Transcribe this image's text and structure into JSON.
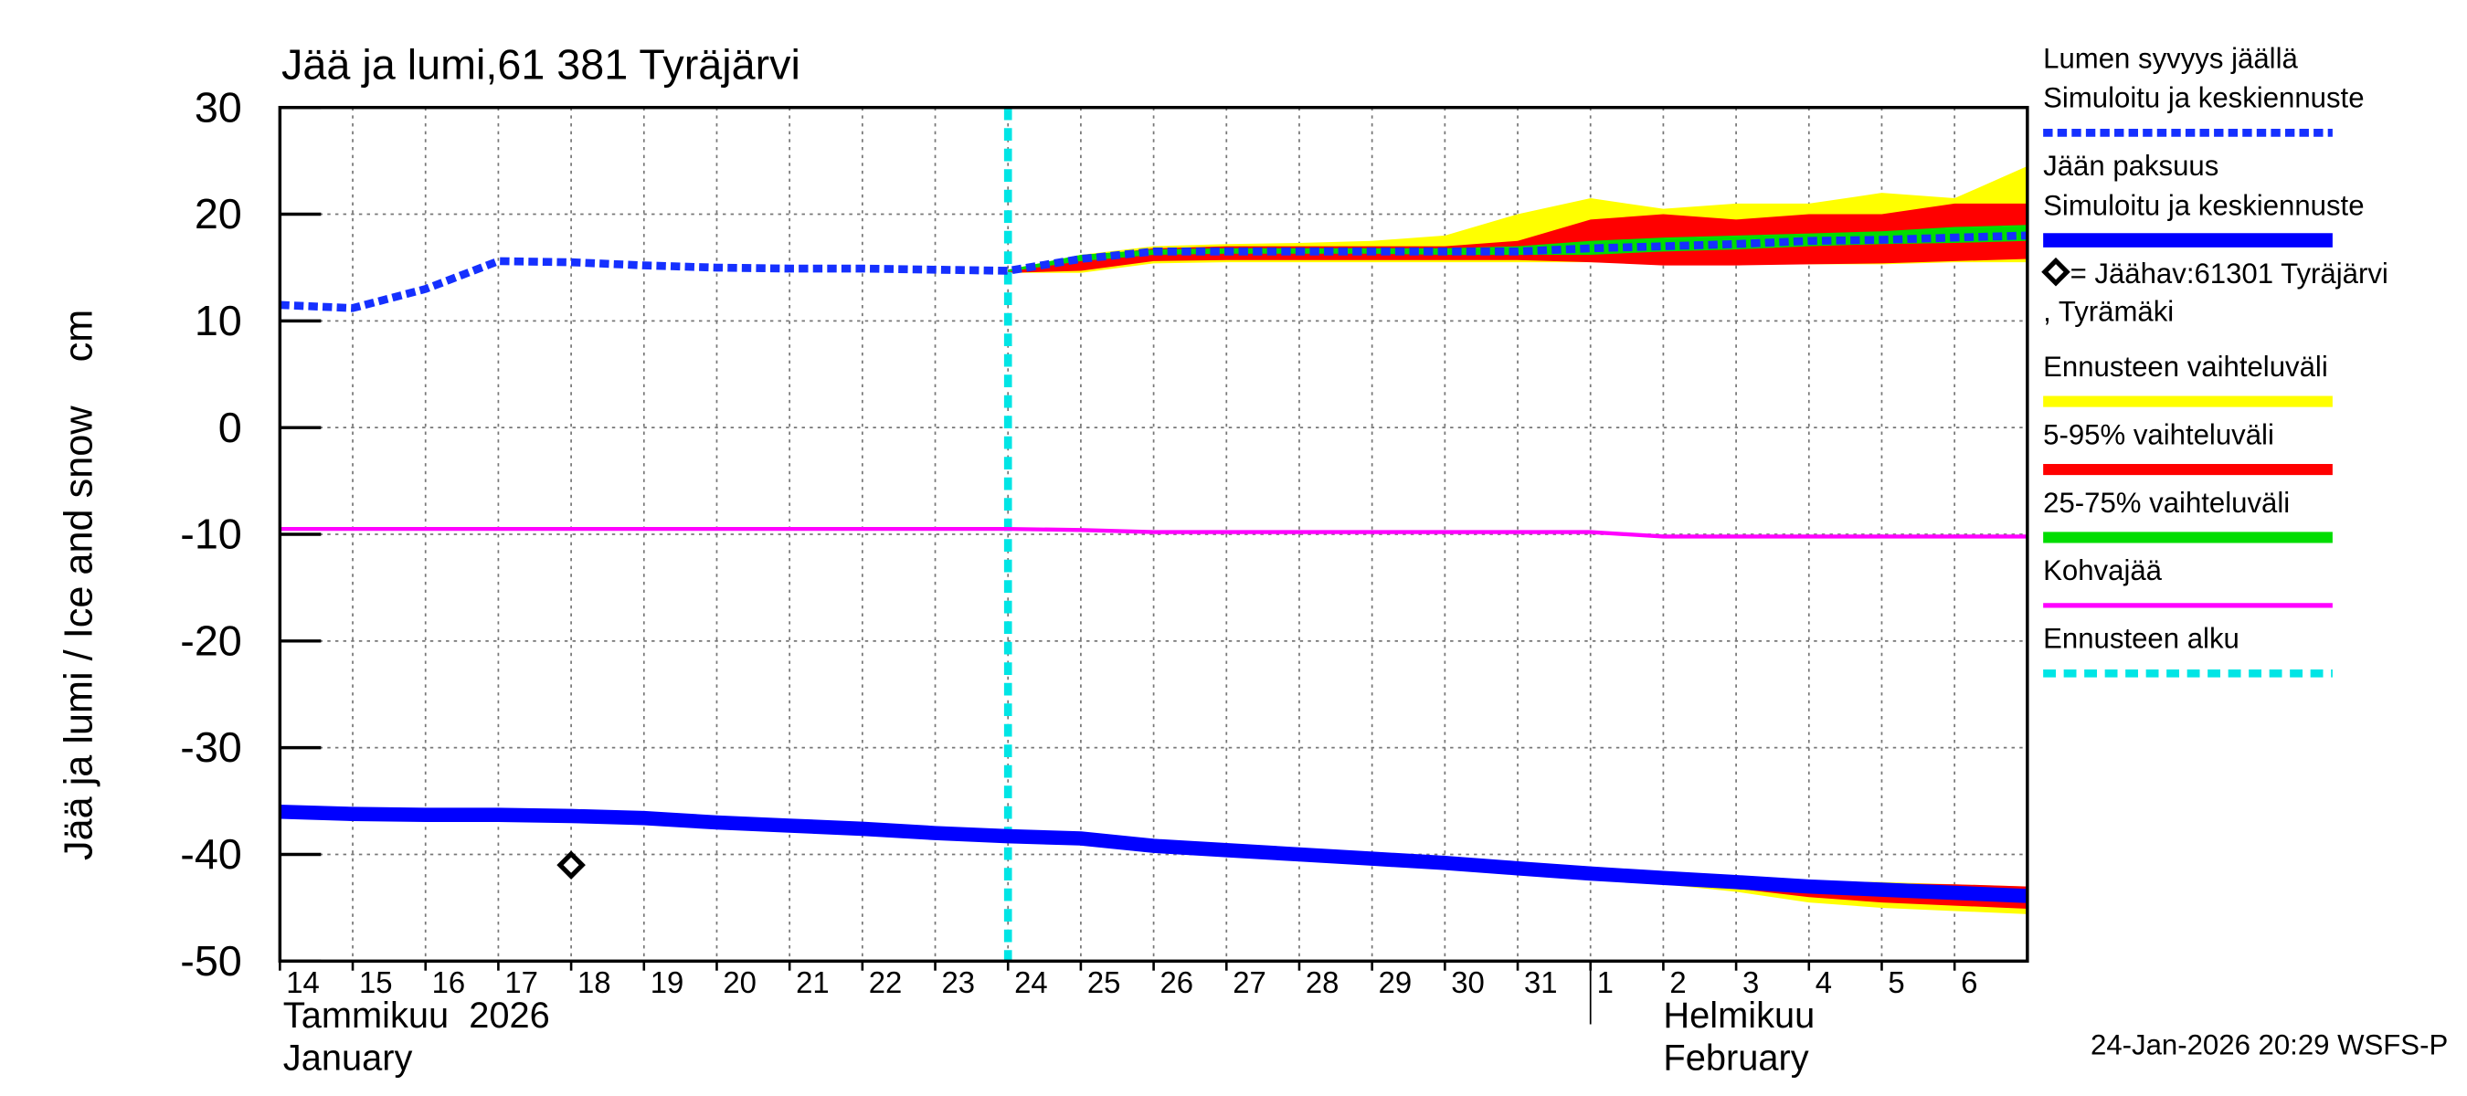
{
  "chart_data": {
    "type": "line",
    "title": "Jää ja lumi,61 381 Tyräjärvi",
    "y_label": "Jää ja lumi / Ice and snow    cm",
    "footer": "24-Jan-2026 20:29 WSFS-P",
    "ylim": [
      -50,
      30
    ],
    "yticks": [
      30,
      20,
      10,
      0,
      -10,
      -20,
      -30,
      -40,
      -50
    ],
    "xlim": [
      "2026-01-14",
      "2026-02-07"
    ],
    "xticks": [
      {
        "value": "2026-01-14",
        "label": "14"
      },
      {
        "value": "2026-01-15",
        "label": "15"
      },
      {
        "value": "2026-01-16",
        "label": "16"
      },
      {
        "value": "2026-01-17",
        "label": "17"
      },
      {
        "value": "2026-01-18",
        "label": "18"
      },
      {
        "value": "2026-01-19",
        "label": "19"
      },
      {
        "value": "2026-01-20",
        "label": "20"
      },
      {
        "value": "2026-01-21",
        "label": "21"
      },
      {
        "value": "2026-01-22",
        "label": "22"
      },
      {
        "value": "2026-01-23",
        "label": "23"
      },
      {
        "value": "2026-01-24",
        "label": "24"
      },
      {
        "value": "2026-01-25",
        "label": "25"
      },
      {
        "value": "2026-01-26",
        "label": "26"
      },
      {
        "value": "2026-01-27",
        "label": "27"
      },
      {
        "value": "2026-01-28",
        "label": "28"
      },
      {
        "value": "2026-01-29",
        "label": "29"
      },
      {
        "value": "2026-01-30",
        "label": "30"
      },
      {
        "value": "2026-01-31",
        "label": "31"
      },
      {
        "value": "2026-02-01",
        "label": "1"
      },
      {
        "value": "2026-02-02",
        "label": "2"
      },
      {
        "value": "2026-02-03",
        "label": "3"
      },
      {
        "value": "2026-02-04",
        "label": "4"
      },
      {
        "value": "2026-02-05",
        "label": "5"
      },
      {
        "value": "2026-02-06",
        "label": "6"
      }
    ],
    "months": [
      {
        "start": "2026-01-14",
        "fi": "Tammikuu  2026",
        "en": "January"
      },
      {
        "start": "2026-02-01",
        "fi": "Helmikuu",
        "en": "February"
      }
    ],
    "grid": true,
    "series": [
      {
        "name": "Lumen syvyys jäällä",
        "name2": "Simuloitu ja keskiennuste",
        "kind": "line",
        "style": "dashed",
        "color": "#1530ff",
        "x": [
          "2026-01-14",
          "2026-01-15",
          "2026-01-16",
          "2026-01-17",
          "2026-01-18",
          "2026-01-19",
          "2026-01-20",
          "2026-01-21",
          "2026-01-22",
          "2026-01-23",
          "2026-01-24",
          "2026-01-25",
          "2026-01-26",
          "2026-01-27",
          "2026-01-28",
          "2026-01-29",
          "2026-01-30",
          "2026-01-31",
          "2026-02-01",
          "2026-02-02",
          "2026-02-03",
          "2026-02-04",
          "2026-02-05",
          "2026-02-06",
          "2026-02-07"
        ],
        "values": [
          11.5,
          11.2,
          13,
          15.6,
          15.5,
          15.2,
          15,
          14.9,
          14.9,
          14.8,
          14.7,
          15.8,
          16.5,
          16.5,
          16.5,
          16.5,
          16.5,
          16.5,
          16.8,
          17,
          17.2,
          17.5,
          17.6,
          17.8,
          18
        ]
      },
      {
        "name": "Jään paksuus",
        "name2": "Simuloitu ja keskiennuste",
        "kind": "line",
        "style": "solid",
        "color": "#0000ff",
        "x": [
          "2026-01-14",
          "2026-01-15",
          "2026-01-16",
          "2026-01-17",
          "2026-01-18",
          "2026-01-19",
          "2026-01-20",
          "2026-01-21",
          "2026-01-22",
          "2026-01-23",
          "2026-01-24",
          "2026-01-25",
          "2026-01-26",
          "2026-01-27",
          "2026-01-28",
          "2026-01-29",
          "2026-01-30",
          "2026-01-31",
          "2026-02-01",
          "2026-02-02",
          "2026-02-03",
          "2026-02-04",
          "2026-02-05",
          "2026-02-06",
          "2026-02-07"
        ],
        "values": [
          -36,
          -36.2,
          -36.3,
          -36.3,
          -36.4,
          -36.6,
          -37,
          -37.3,
          -37.6,
          -38,
          -38.3,
          -38.5,
          -39.2,
          -39.6,
          -40,
          -40.4,
          -40.8,
          -41.3,
          -41.8,
          -42.2,
          -42.6,
          -43,
          -43.3,
          -43.6,
          -43.9
        ]
      },
      {
        "name": "= Jäähav:61301 Tyräjärvi",
        "name2": ", Tyrämäki",
        "kind": "marker",
        "color": "#000000",
        "x": [
          "2026-01-18"
        ],
        "values": [
          -41
        ]
      },
      {
        "name": "Ennusteen vaihteluväli",
        "kind": "band",
        "color": "#ffff00",
        "x": [
          "2026-01-24",
          "2026-01-25",
          "2026-01-26",
          "2026-01-27",
          "2026-01-28",
          "2026-01-29",
          "2026-01-30",
          "2026-01-31",
          "2026-02-01",
          "2026-02-02",
          "2026-02-03",
          "2026-02-04",
          "2026-02-05",
          "2026-02-06",
          "2026-02-07"
        ],
        "ranges": [
          {
            "high": [
              14.8,
              16.2,
              17,
              17.2,
              17.3,
              17.5,
              18,
              20,
              21.5,
              20.5,
              21,
              21,
              22,
              21.5,
              24.5
            ],
            "low": [
              14.5,
              14.5,
              15.4,
              15.5,
              15.5,
              15.5,
              15.5,
              15.5,
              15.5,
              15.3,
              15.3,
              15.3,
              15.3,
              15.5,
              15.5
            ]
          },
          {
            "high": [
              -38.3,
              -38.5,
              -39.2,
              -39.6,
              -40,
              -40.3,
              -40.7,
              -41.2,
              -41.7,
              -42,
              -42.3,
              -42.5,
              -42.6,
              -42.8,
              -43
            ],
            "low": [
              -38.3,
              -38.6,
              -39.3,
              -39.8,
              -40.2,
              -40.7,
              -41.2,
              -41.7,
              -42.2,
              -42.8,
              -43.5,
              -44.5,
              -45,
              -45.3,
              -45.6
            ]
          }
        ]
      },
      {
        "name": "5-95% vaihteluväli",
        "kind": "band",
        "color": "#ff0000",
        "x": [
          "2026-01-24",
          "2026-01-25",
          "2026-01-26",
          "2026-01-27",
          "2026-01-28",
          "2026-01-29",
          "2026-01-30",
          "2026-01-31",
          "2026-02-01",
          "2026-02-02",
          "2026-02-03",
          "2026-02-04",
          "2026-02-05",
          "2026-02-06",
          "2026-02-07"
        ],
        "ranges": [
          {
            "high": [
              14.8,
              16,
              16.8,
              17,
              17,
              17,
              17,
              17.5,
              19.5,
              20,
              19.5,
              20,
              20,
              21,
              21
            ],
            "low": [
              14.5,
              14.7,
              15.6,
              15.7,
              15.7,
              15.7,
              15.7,
              15.7,
              15.5,
              15.2,
              15.2,
              15.3,
              15.4,
              15.6,
              15.8
            ]
          },
          {
            "high": [
              -38.3,
              -38.4,
              -39.2,
              -39.6,
              -40,
              -40.4,
              -40.8,
              -41.3,
              -41.8,
              -42.1,
              -42.4,
              -42.6,
              -42.7,
              -42.8,
              -43
            ],
            "low": [
              -38.3,
              -38.6,
              -39.3,
              -39.8,
              -40.2,
              -40.6,
              -41.1,
              -41.6,
              -42.1,
              -42.6,
              -43.2,
              -44,
              -44.5,
              -44.8,
              -45.1
            ]
          }
        ]
      },
      {
        "name": "25-75% vaihteluväli",
        "kind": "band",
        "color": "#00dd00",
        "x": [
          "2026-01-24",
          "2026-01-25",
          "2026-01-26",
          "2026-01-27",
          "2026-01-28",
          "2026-01-29",
          "2026-01-30",
          "2026-01-31",
          "2026-02-01",
          "2026-02-02",
          "2026-02-03",
          "2026-02-04",
          "2026-02-05",
          "2026-02-06",
          "2026-02-07"
        ],
        "ranges": [
          {
            "high": [
              14.8,
              16.2,
              16.7,
              16.8,
              16.8,
              16.8,
              16.8,
              17,
              17.5,
              17.8,
              18,
              18.2,
              18.4,
              18.8,
              19
            ],
            "low": [
              14.6,
              15.6,
              16.2,
              16.3,
              16.3,
              16.3,
              16.2,
              16.2,
              16.2,
              16.5,
              16.7,
              17,
              17.2,
              17.3,
              17.5
            ]
          },
          {
            "high": [
              -38.3,
              -38.5,
              -39.2,
              -39.6,
              -40,
              -40.4,
              -40.8,
              -41.3,
              -41.8,
              -42.2,
              -42.6,
              -43,
              -43.3,
              -43.6,
              -43.8
            ],
            "low": [
              -38.3,
              -38.5,
              -39.2,
              -39.6,
              -40,
              -40.4,
              -40.8,
              -41.3,
              -41.8,
              -42.2,
              -42.7,
              -43.1,
              -43.5,
              -43.8,
              -44.1
            ]
          }
        ]
      },
      {
        "name": "Kohvajää",
        "kind": "line",
        "style": "thin",
        "color": "#ff00ff",
        "x": [
          "2026-01-14",
          "2026-01-15",
          "2026-01-16",
          "2026-01-17",
          "2026-01-18",
          "2026-01-19",
          "2026-01-20",
          "2026-01-21",
          "2026-01-22",
          "2026-01-23",
          "2026-01-24",
          "2026-01-25",
          "2026-01-26",
          "2026-01-27",
          "2026-01-28",
          "2026-01-29",
          "2026-01-30",
          "2026-01-31",
          "2026-02-01",
          "2026-02-02",
          "2026-02-03",
          "2026-02-04",
          "2026-02-05",
          "2026-02-06",
          "2026-02-07"
        ],
        "values": [
          -9.5,
          -9.5,
          -9.5,
          -9.5,
          -9.5,
          -9.5,
          -9.5,
          -9.5,
          -9.5,
          -9.5,
          -9.5,
          -9.6,
          -9.8,
          -9.8,
          -9.8,
          -9.8,
          -9.8,
          -9.8,
          -9.8,
          -10.2,
          -10.2,
          -10.2,
          -10.2,
          -10.2,
          -10.2
        ]
      },
      {
        "name": "Ennusteen alku",
        "kind": "vline",
        "color": "#00e5e5",
        "x": [
          "2026-01-24"
        ]
      }
    ]
  }
}
